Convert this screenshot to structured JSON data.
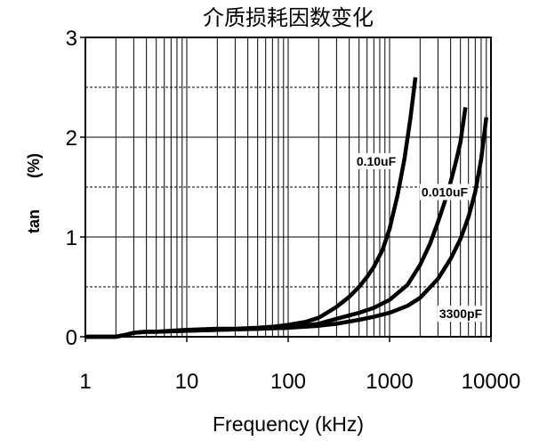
{
  "chart_data": {
    "type": "line",
    "title": "介质损耗因数变化",
    "xlabel": "Frequency (kHz)",
    "ylabel": "tan       (%)",
    "xscale": "log",
    "xlim": [
      1,
      10000
    ],
    "ylim": [
      0,
      3
    ],
    "xticks": [
      1,
      10,
      100,
      1000,
      10000
    ],
    "xtick_labels": [
      "1",
      "10",
      "100",
      "1000",
      "10000"
    ],
    "yticks": [
      0,
      1,
      2,
      3
    ],
    "ytick_labels": [
      "0",
      "1",
      "2",
      "3"
    ],
    "grid": true,
    "line_color": "#000000",
    "series": [
      {
        "name": "0.10uF",
        "x": [
          1,
          2,
          2.5,
          3,
          4,
          5,
          7,
          10,
          20,
          30,
          50,
          70,
          100,
          150,
          200,
          250,
          300,
          400,
          500,
          600,
          700,
          850,
          1000,
          1200,
          1400,
          1600,
          1800
        ],
        "y": [
          0.0,
          0.0,
          0.02,
          0.04,
          0.05,
          0.05,
          0.06,
          0.07,
          0.08,
          0.08,
          0.09,
          0.1,
          0.12,
          0.15,
          0.19,
          0.25,
          0.3,
          0.4,
          0.5,
          0.6,
          0.7,
          0.87,
          1.08,
          1.42,
          1.78,
          2.18,
          2.6
        ]
      },
      {
        "name": "0.010uF",
        "x": [
          1,
          2,
          2.5,
          3,
          4,
          5,
          10,
          20,
          50,
          100,
          200,
          300,
          500,
          700,
          1000,
          1500,
          2000,
          2500,
          3000,
          3500,
          4000,
          4500,
          5000,
          5600
        ],
        "y": [
          0.0,
          0.0,
          0.02,
          0.04,
          0.05,
          0.05,
          0.06,
          0.07,
          0.08,
          0.09,
          0.13,
          0.18,
          0.24,
          0.29,
          0.37,
          0.52,
          0.72,
          0.93,
          1.15,
          1.35,
          1.55,
          1.75,
          1.95,
          2.3
        ]
      },
      {
        "name": "3300pF",
        "x": [
          1,
          2,
          2.5,
          3,
          4,
          5,
          10,
          20,
          50,
          100,
          200,
          300,
          500,
          700,
          1000,
          1500,
          2000,
          3000,
          4000,
          5000,
          6000,
          7000,
          8000,
          9000
        ],
        "y": [
          0.0,
          0.0,
          0.02,
          0.04,
          0.05,
          0.05,
          0.06,
          0.07,
          0.08,
          0.09,
          0.11,
          0.13,
          0.17,
          0.2,
          0.24,
          0.31,
          0.39,
          0.58,
          0.78,
          0.98,
          1.2,
          1.45,
          1.78,
          2.2
        ]
      }
    ]
  }
}
